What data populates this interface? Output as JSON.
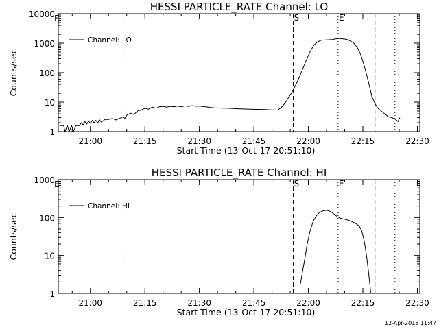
{
  "chart_data": [
    {
      "type": "line",
      "title": "HESSI PARTICLE_RATE Channel: LO",
      "xlabel": "Start Time (13-Oct-17 20:51:10)",
      "ylabel": "Counts/sec",
      "y_scale": "log",
      "ylim": [
        1,
        10000
      ],
      "y_ticks": [
        "1",
        "10",
        "100",
        "1000",
        "10000"
      ],
      "xlim": [
        "20:51:10",
        "22:30:40"
      ],
      "x_ticks": [
        "21:00",
        "21:15",
        "21:30",
        "21:45",
        "22:00",
        "22:15",
        "22:30"
      ],
      "legend": {
        "entries": [
          "Channel: LO"
        ],
        "position": "top-left"
      },
      "markers": [
        {
          "time": "21:09:00",
          "style": "dotted",
          "label": ""
        },
        {
          "time": "21:55:50",
          "style": "dashed",
          "label": "S"
        },
        {
          "time": "22:08:10",
          "style": "dotted",
          "label": "E"
        },
        {
          "time": "22:18:20",
          "style": "dashed",
          "label": ""
        },
        {
          "time": "22:23:50",
          "style": "dotted",
          "label": ""
        }
      ],
      "corner_label": "E",
      "series": [
        {
          "name": "Channel: LO",
          "points": [
            [
              "20:51:30",
              1.6
            ],
            [
              "20:52:40",
              1.6
            ],
            [
              "20:53:00",
              1.0
            ],
            [
              "20:53:40",
              1.6
            ],
            [
              "20:54:10",
              1.0
            ],
            [
              "20:54:50",
              1.6
            ],
            [
              "20:55:20",
              1.0
            ],
            [
              "20:56:00",
              1.6
            ],
            [
              "20:57:00",
              1.6
            ],
            [
              "20:57:30",
              2.0
            ],
            [
              "20:58:00",
              1.7
            ],
            [
              "20:58:30",
              2.2
            ],
            [
              "20:59:00",
              1.8
            ],
            [
              "20:59:30",
              2.3
            ],
            [
              "21:00:00",
              1.9
            ],
            [
              "21:00:30",
              2.4
            ],
            [
              "21:01:00",
              2.0
            ],
            [
              "21:01:30",
              2.4
            ],
            [
              "21:02:00",
              2.0
            ],
            [
              "21:02:30",
              2.5
            ],
            [
              "21:03:00",
              2.1
            ],
            [
              "21:04:00",
              2.6
            ],
            [
              "21:05:00",
              2.6
            ],
            [
              "21:06:00",
              2.8
            ],
            [
              "21:07:00",
              2.5
            ],
            [
              "21:08:00",
              2.8
            ],
            [
              "21:09:00",
              3.2
            ],
            [
              "21:09:30",
              2.8
            ],
            [
              "21:10:00",
              3.6
            ],
            [
              "21:11:00",
              4.2
            ],
            [
              "21:12:00",
              3.8
            ],
            [
              "21:13:00",
              5.0
            ],
            [
              "21:14:00",
              5.4
            ],
            [
              "21:15:00",
              6.2
            ],
            [
              "21:16:00",
              5.8
            ],
            [
              "21:17:00",
              6.8
            ],
            [
              "21:18:00",
              6.2
            ],
            [
              "21:19:00",
              7.0
            ],
            [
              "21:20:00",
              7.2
            ],
            [
              "21:21:00",
              6.8
            ],
            [
              "21:22:00",
              7.2
            ],
            [
              "21:23:00",
              7.0
            ],
            [
              "21:24:00",
              7.4
            ],
            [
              "21:25:00",
              7.0
            ],
            [
              "21:26:00",
              7.5
            ],
            [
              "21:27:00",
              7.2
            ],
            [
              "21:28:00",
              7.6
            ],
            [
              "21:29:00",
              7.3
            ],
            [
              "21:30:00",
              7.4
            ],
            [
              "21:31:00",
              7.1
            ],
            [
              "21:32:00",
              6.9
            ],
            [
              "21:33:00",
              6.6
            ],
            [
              "21:34:00",
              6.4
            ],
            [
              "21:36:00",
              6.3
            ],
            [
              "21:38:00",
              6.2
            ],
            [
              "21:40:00",
              6.0
            ],
            [
              "21:42:00",
              5.9
            ],
            [
              "21:44:00",
              5.8
            ],
            [
              "21:46:00",
              5.7
            ],
            [
              "21:48:00",
              5.6
            ],
            [
              "21:50:00",
              5.5
            ],
            [
              "21:51:30",
              5.4
            ],
            [
              "21:52:30",
              6.5
            ],
            [
              "21:53:30",
              9
            ],
            [
              "21:54:30",
              14
            ],
            [
              "21:55:30",
              22
            ],
            [
              "21:56:30",
              38
            ],
            [
              "21:57:30",
              70
            ],
            [
              "21:58:30",
              140
            ],
            [
              "21:59:30",
              280
            ],
            [
              "22:00:30",
              520
            ],
            [
              "22:01:30",
              850
            ],
            [
              "22:02:30",
              1100
            ],
            [
              "22:03:30",
              1250
            ],
            [
              "22:04:30",
              1280
            ],
            [
              "22:05:30",
              1300
            ],
            [
              "22:06:30",
              1320
            ],
            [
              "22:07:30",
              1400
            ],
            [
              "22:08:30",
              1450
            ],
            [
              "22:09:30",
              1400
            ],
            [
              "22:10:30",
              1350
            ],
            [
              "22:11:30",
              1200
            ],
            [
              "22:12:30",
              1000
            ],
            [
              "22:13:30",
              700
            ],
            [
              "22:14:30",
              380
            ],
            [
              "22:15:30",
              150
            ],
            [
              "22:16:30",
              50
            ],
            [
              "22:17:30",
              15
            ],
            [
              "22:18:20",
              9
            ],
            [
              "22:19:00",
              6.5
            ],
            [
              "22:20:00",
              5.0
            ],
            [
              "22:21:00",
              4.0
            ],
            [
              "22:22:00",
              3.2
            ],
            [
              "22:23:00",
              3.0
            ],
            [
              "22:24:00",
              2.6
            ],
            [
              "22:24:40",
              2.2
            ],
            [
              "22:25:10",
              3.0
            ]
          ]
        }
      ]
    },
    {
      "type": "line",
      "title": "HESSI PARTICLE_RATE Channel: HI",
      "xlabel": "Start Time (13-Oct-17 20:51:10)",
      "ylabel": "Counts/sec",
      "y_scale": "log",
      "ylim": [
        1,
        1000
      ],
      "y_ticks": [
        "1",
        "10",
        "100",
        "1000"
      ],
      "xlim": [
        "20:51:10",
        "22:30:40"
      ],
      "x_ticks": [
        "21:00",
        "21:15",
        "21:30",
        "21:45",
        "22:00",
        "22:15",
        "22:30"
      ],
      "legend": {
        "entries": [
          "Channel: HI"
        ],
        "position": "top-left"
      },
      "markers": [
        {
          "time": "21:09:00",
          "style": "dotted",
          "label": ""
        },
        {
          "time": "21:55:50",
          "style": "dashed",
          "label": "S"
        },
        {
          "time": "22:08:10",
          "style": "dotted",
          "label": "E"
        },
        {
          "time": "22:18:20",
          "style": "dashed",
          "label": ""
        },
        {
          "time": "22:23:50",
          "style": "dotted",
          "label": ""
        }
      ],
      "corner_label": "E",
      "series": [
        {
          "name": "Channel: HI",
          "points": [
            [
              "21:57:50",
              1.8
            ],
            [
              "21:58:20",
              3.5
            ],
            [
              "21:59:00",
              8
            ],
            [
              "21:59:40",
              20
            ],
            [
              "22:00:30",
              45
            ],
            [
              "22:01:20",
              80
            ],
            [
              "22:02:10",
              110
            ],
            [
              "22:03:00",
              135
            ],
            [
              "22:04:00",
              150
            ],
            [
              "22:05:00",
              155
            ],
            [
              "22:06:00",
              145
            ],
            [
              "22:07:00",
              125
            ],
            [
              "22:08:00",
              105
            ],
            [
              "22:09:00",
              95
            ],
            [
              "22:10:00",
              90
            ],
            [
              "22:11:00",
              85
            ],
            [
              "22:12:00",
              78
            ],
            [
              "22:13:00",
              70
            ],
            [
              "22:14:00",
              60
            ],
            [
              "22:14:40",
              45
            ],
            [
              "22:15:20",
              25
            ],
            [
              "22:16:00",
              10
            ],
            [
              "22:16:30",
              4
            ],
            [
              "22:17:00",
              1.5
            ],
            [
              "22:17:10",
              1.0
            ]
          ]
        }
      ]
    }
  ],
  "footer": {
    "timestamp": "12-Apr-2018 11:47"
  }
}
